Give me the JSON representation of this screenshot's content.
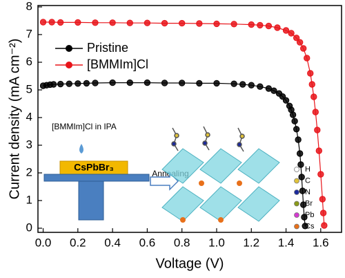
{
  "chart_data": {
    "type": "line",
    "xlabel": "Voltage (V)",
    "ylabel": "Current density (mA cm⁻²)",
    "xlim": [
      -0.03,
      1.72
    ],
    "ylim": [
      -0.15,
      8.05
    ],
    "xticks": [
      {
        "value": 0,
        "label": "0.0"
      },
      0.2,
      0.4,
      0.6,
      0.8,
      {
        "value": 1,
        "label": "1.0"
      },
      1.2,
      1.4,
      1.6
    ],
    "yticks": [
      0,
      1,
      2,
      3,
      4,
      5,
      6,
      7,
      8
    ],
    "legend": "upper left",
    "series": [
      {
        "name": "Pristine",
        "color": "#000000",
        "x": [
          0,
          0.02,
          0.04,
          0.06,
          0.1,
          0.15,
          0.2,
          0.25,
          0.3,
          0.4,
          0.5,
          0.6,
          0.7,
          0.8,
          0.9,
          1.0,
          1.1,
          1.15,
          1.2,
          1.25,
          1.3,
          1.33,
          1.36,
          1.38,
          1.4,
          1.42,
          1.43,
          1.44,
          1.45,
          1.46,
          1.47,
          1.48,
          1.485,
          1.49,
          1.495,
          1.5,
          1.505,
          1.51
        ],
        "values": [
          5.15,
          5.17,
          5.19,
          5.2,
          5.21,
          5.22,
          5.23,
          5.24,
          5.25,
          5.26,
          5.26,
          5.26,
          5.25,
          5.25,
          5.24,
          5.24,
          5.22,
          5.2,
          5.17,
          5.12,
          5.05,
          4.97,
          4.87,
          4.76,
          4.62,
          4.42,
          4.28,
          4.1,
          3.87,
          3.58,
          3.2,
          2.7,
          2.3,
          1.85,
          1.35,
          0.85,
          0.4,
          0.08
        ]
      },
      {
        "name": "[BMMIm]Cl",
        "color": "#e8141a",
        "x": [
          0,
          0.05,
          0.1,
          0.2,
          0.3,
          0.4,
          0.5,
          0.6,
          0.7,
          0.8,
          0.9,
          1.0,
          1.1,
          1.2,
          1.25,
          1.3,
          1.35,
          1.4,
          1.43,
          1.46,
          1.48,
          1.5,
          1.52,
          1.54,
          1.55,
          1.56,
          1.57,
          1.58,
          1.59,
          1.6,
          1.61,
          1.615,
          1.62
        ],
        "values": [
          7.45,
          7.45,
          7.44,
          7.44,
          7.43,
          7.43,
          7.42,
          7.42,
          7.41,
          7.41,
          7.4,
          7.39,
          7.38,
          7.36,
          7.34,
          7.31,
          7.25,
          7.15,
          7.05,
          6.88,
          6.72,
          6.5,
          6.15,
          5.6,
          5.2,
          4.75,
          4.2,
          3.55,
          2.8,
          1.95,
          1.05,
          0.55,
          0.1
        ]
      }
    ],
    "inset": {
      "solution_label": "[BMMIm]Cl in IPA",
      "film_label": "CsPbBr₃",
      "arrow_label": "Annealing",
      "atoms": [
        {
          "name": "H",
          "color": "#ffffff"
        },
        {
          "name": "C",
          "color": "#e0c23a"
        },
        {
          "name": "N",
          "color": "#1c2a9c"
        },
        {
          "name": "Br",
          "color": "#8a9a1a"
        },
        {
          "name": "Pb",
          "color": "#d43ad0"
        },
        {
          "name": "Cs",
          "color": "#e8701a"
        }
      ]
    }
  }
}
